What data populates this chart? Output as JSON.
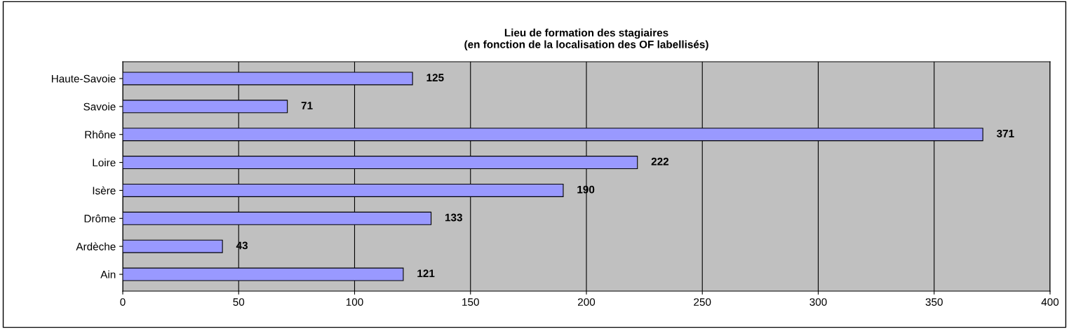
{
  "chart_data": {
    "type": "bar",
    "orientation": "horizontal",
    "title": "Lieu de formation des stagiaires\n(en fonction de la localisation des OF labellisés)",
    "categories": [
      "Haute-Savoie",
      "Savoie",
      "Rhône",
      "Loire",
      "Isère",
      "Drôme",
      "Ardèche",
      "Ain"
    ],
    "values": [
      125,
      71,
      371,
      222,
      190,
      133,
      43,
      121
    ],
    "color": "#9999ff",
    "xlim": [
      0,
      400
    ],
    "xticks": [
      0,
      50,
      100,
      150,
      200,
      250,
      300,
      350,
      400
    ],
    "grid": "x",
    "data_labels": true
  }
}
